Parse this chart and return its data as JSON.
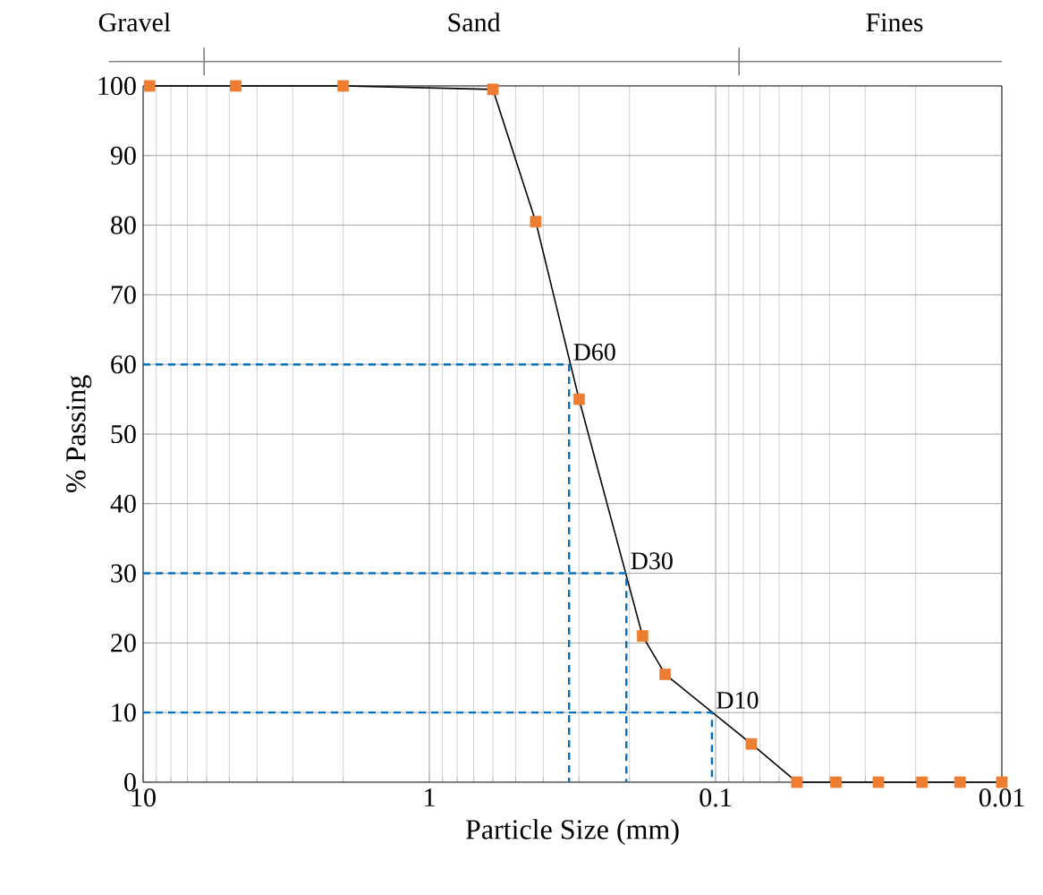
{
  "chart_data": {
    "type": "line",
    "xlabel": "Particle Size (mm)",
    "ylabel": "% Passing",
    "log": "x",
    "xlim": [
      10,
      0.01
    ],
    "xticks": [
      10,
      1,
      0.1,
      0.01
    ],
    "ylim": [
      0,
      100
    ],
    "yticks": [
      0,
      10,
      20,
      30,
      40,
      50,
      60,
      70,
      80,
      90,
      100
    ],
    "grid": true,
    "marker": "square",
    "line_style": "solid",
    "series": [
      {
        "color": "#000000",
        "colors": [
          "#ed7d31",
          "#ed7d31",
          "#ed7d31",
          "#ed7d31",
          "#ed7d31",
          "#ed7d31",
          "#ed7d31",
          "#ed7d31",
          "#ed7d31",
          "#ed7d31",
          "#ed7d31",
          "#ed7d31",
          "#ed7d31",
          "#ed7d31",
          "#ed7d31"
        ],
        "x": [
          9.5,
          4.75,
          2.0,
          0.6,
          0.425,
          0.3,
          0.18,
          0.15,
          0.075,
          0.052,
          0.038,
          0.027,
          0.019,
          0.014,
          0.01
        ],
        "values": [
          100,
          100,
          100,
          99.5,
          80.5,
          55,
          21,
          15.5,
          5.5,
          0,
          0,
          0,
          0,
          0,
          0
        ]
      },
      {
        "color": "#0070c0",
        "marker": "none",
        "line_style": "dashed",
        "x": [
          10,
          0.325,
          0.325
        ],
        "values": [
          60,
          60,
          0
        ]
      },
      {
        "color": "#0070c0",
        "marker": "none",
        "line_style": "dashed",
        "x": [
          10,
          0.205,
          0.205
        ],
        "values": [
          30,
          30,
          0
        ]
      },
      {
        "color": "#0070c0",
        "marker": "none",
        "line_style": "dashed",
        "x": [
          10,
          0.103,
          0.103
        ],
        "values": [
          10,
          10,
          0
        ]
      }
    ],
    "annotations": [
      {
        "text": "D60",
        "x": 0.325,
        "y": 60
      },
      {
        "text": "D30",
        "x": 0.205,
        "y": 30
      },
      {
        "text": "D10",
        "x": 0.103,
        "y": 10
      },
      "Gravel",
      "Sand",
      "Fines"
    ]
  }
}
